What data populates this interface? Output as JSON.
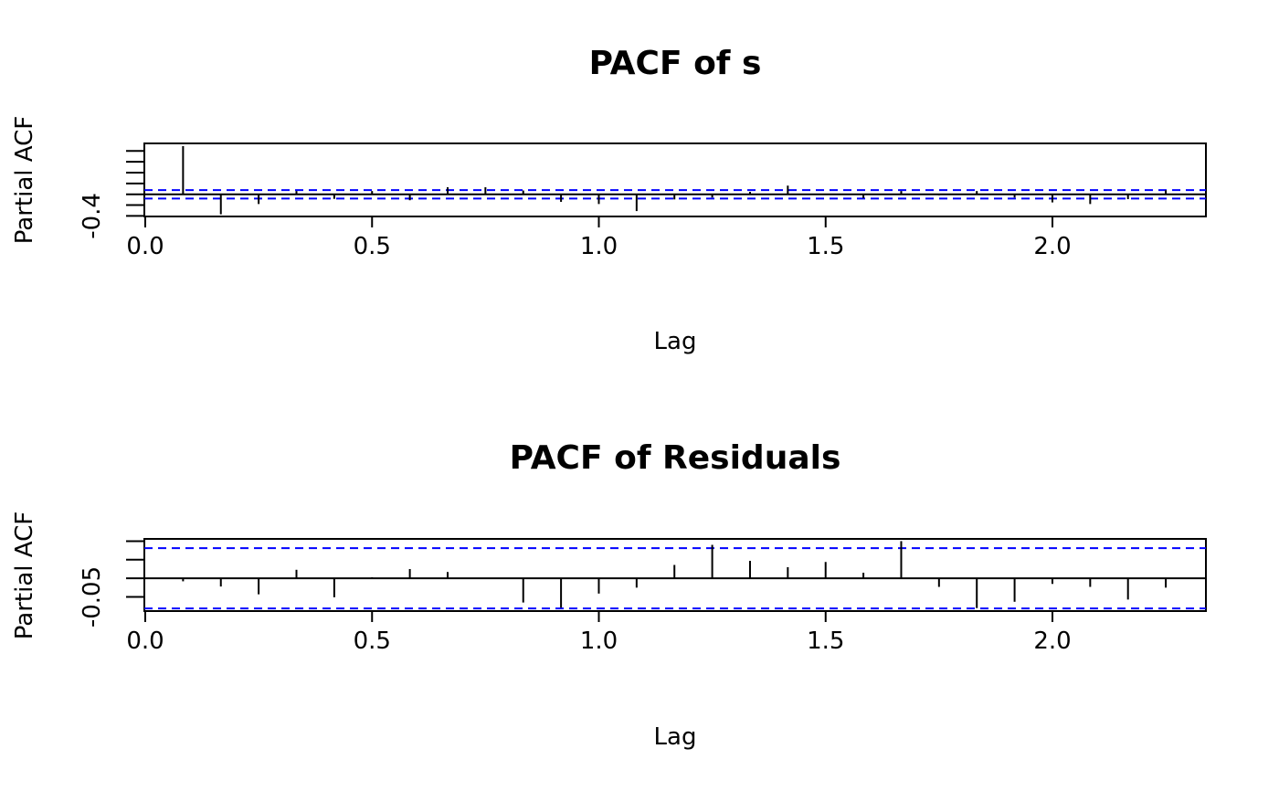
{
  "chart_data": [
    {
      "type": "bar",
      "title": "PACF of s",
      "xlabel": "Lag",
      "ylabel": "Partial ACF",
      "xlim": [
        0,
        2.34
      ],
      "ylim": [
        -0.41,
        0.94
      ],
      "x_ticks": [
        0.0,
        0.5,
        1.0,
        1.5,
        2.0
      ],
      "x_tick_labels": [
        "0.0",
        "0.5",
        "1.0",
        "1.5",
        "2.0"
      ],
      "y_ticks": [
        -0.4,
        -0.2,
        0.0,
        0.2,
        0.4,
        0.6,
        0.8
      ],
      "y_tick_labels": [
        "-0.4"
      ],
      "y_tick_labeled_value": -0.4,
      "conf_limit": 0.078,
      "lag_step": 0.08333,
      "values": [
        0.89,
        -0.37,
        -0.18,
        0.06,
        -0.085,
        0.06,
        -0.11,
        0.13,
        0.13,
        0.07,
        -0.14,
        -0.18,
        -0.31,
        -0.095,
        -0.06,
        0.045,
        0.16,
        -0.01,
        -0.07,
        0.06,
        -0.02,
        0.06,
        -0.06,
        -0.15,
        -0.18,
        -0.09,
        0.075
      ],
      "colors": {
        "bar": "#000000",
        "conf": "#0000ff"
      }
    },
    {
      "type": "bar",
      "title": "PACF of Residuals",
      "xlabel": "Lag",
      "ylabel": "Partial ACF",
      "xlim": [
        0,
        2.34
      ],
      "ylim": [
        -0.088,
        0.106
      ],
      "x_ticks": [
        0.0,
        0.5,
        1.0,
        1.5,
        2.0
      ],
      "x_tick_labels": [
        "0.0",
        "0.5",
        "1.0",
        "1.5",
        "2.0"
      ],
      "y_ticks": [
        -0.05,
        0.0,
        0.05,
        0.1
      ],
      "y_tick_labels": [
        "-0.05"
      ],
      "y_tick_labeled_value": -0.05,
      "conf_limit": 0.081,
      "lag_step": 0.08333,
      "values": [
        -0.008,
        -0.022,
        -0.043,
        0.023,
        -0.051,
        0.003,
        0.025,
        0.017,
        -0.002,
        -0.065,
        -0.079,
        -0.041,
        -0.025,
        0.036,
        0.09,
        0.047,
        0.03,
        0.044,
        0.015,
        0.1,
        -0.023,
        -0.08,
        -0.063,
        -0.015,
        -0.023,
        -0.057,
        -0.025
      ],
      "colors": {
        "bar": "#000000",
        "conf": "#0000ff"
      }
    }
  ]
}
